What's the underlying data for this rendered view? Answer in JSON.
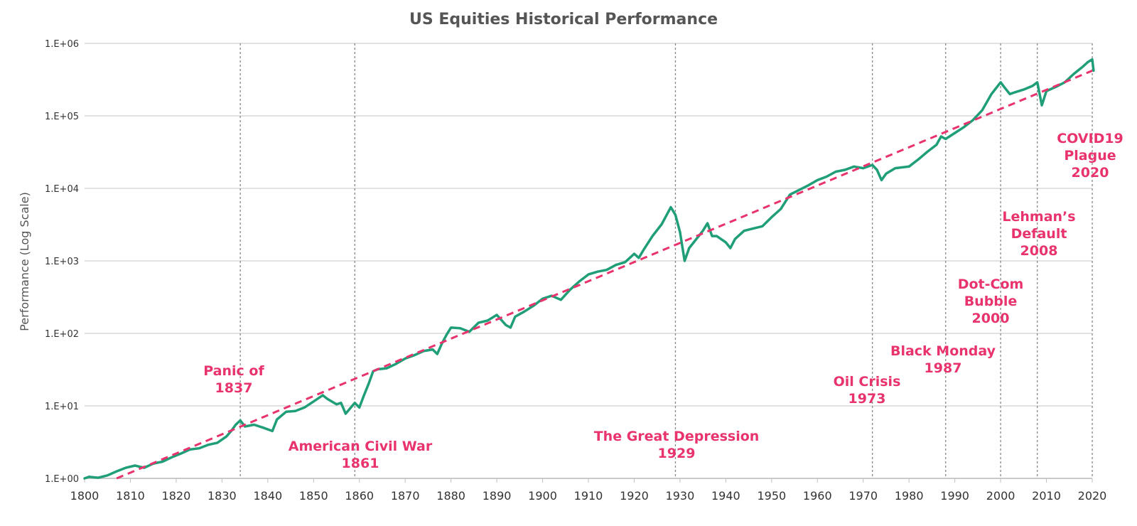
{
  "chart_data": {
    "type": "line",
    "title": "US Equities Historical Performance",
    "xlabel": "",
    "ylabel": "Performance (Log Scale)",
    "xlim": [
      1800,
      2020
    ],
    "ylim": [
      1,
      1000000
    ],
    "yscale": "log",
    "grid": "horizontal",
    "x_ticks": [
      "1800",
      "1810",
      "1820",
      "1830",
      "1840",
      "1850",
      "1860",
      "1870",
      "1880",
      "1890",
      "1900",
      "1910",
      "1920",
      "1930",
      "1940",
      "1950",
      "1960",
      "1970",
      "1980",
      "1990",
      "2000",
      "2010",
      "2020"
    ],
    "y_ticks": [
      {
        "value": 1,
        "label": "1.E+00"
      },
      {
        "value": 10,
        "label": "1.E+01"
      },
      {
        "value": 100,
        "label": "1.E+02"
      },
      {
        "value": 1000,
        "label": "1.E+03"
      },
      {
        "value": 10000,
        "label": "1.E+04"
      },
      {
        "value": 100000,
        "label": "1.E+05"
      },
      {
        "value": 1000000,
        "label": "1.E+06"
      }
    ],
    "colors": {
      "performance": "#1f9e78",
      "trend": "#e8336d",
      "event_lines": "#888888",
      "grid": "#d9d9d9"
    },
    "series": [
      {
        "style": "solid",
        "x": [
          1800,
          1801,
          1803,
          1805,
          1807,
          1809,
          1811,
          1813,
          1815,
          1817,
          1819,
          1821,
          1823,
          1825,
          1827,
          1829,
          1831,
          1832,
          1833,
          1834,
          1835,
          1837,
          1839,
          1841,
          1842,
          1844,
          1846,
          1848,
          1850,
          1852,
          1853,
          1855,
          1856,
          1857,
          1859,
          1860,
          1861,
          1862,
          1863,
          1864,
          1866,
          1868,
          1870,
          1872,
          1874,
          1876,
          1877,
          1878,
          1879,
          1880,
          1882,
          1884,
          1886,
          1888,
          1890,
          1892,
          1893,
          1894,
          1896,
          1898,
          1900,
          1902,
          1904,
          1906,
          1908,
          1910,
          1912,
          1914,
          1916,
          1918,
          1920,
          1921,
          1922,
          1924,
          1926,
          1927,
          1928,
          1929,
          1930,
          1931,
          1932,
          1933,
          1935,
          1936,
          1937,
          1938,
          1940,
          1941,
          1942,
          1944,
          1946,
          1948,
          1950,
          1952,
          1954,
          1956,
          1958,
          1960,
          1962,
          1964,
          1966,
          1968,
          1970,
          1972,
          1973,
          1974,
          1975,
          1977,
          1980,
          1982,
          1984,
          1986,
          1987,
          1988,
          1990,
          1992,
          1994,
          1996,
          1998,
          2000,
          2001,
          2002,
          2003,
          2005,
          2007,
          2008,
          2009,
          2010,
          2012,
          2014,
          2016,
          2018,
          2019,
          2020,
          2020.3
        ],
        "y": [
          1.0,
          1.05,
          1.02,
          1.1,
          1.25,
          1.4,
          1.5,
          1.4,
          1.6,
          1.7,
          1.95,
          2.2,
          2.5,
          2.6,
          2.9,
          3.1,
          3.8,
          4.5,
          5.5,
          6.3,
          5.2,
          5.5,
          5.0,
          4.5,
          6.5,
          8.3,
          8.5,
          9.5,
          11.5,
          14,
          12.5,
          10.5,
          11,
          7.8,
          11,
          9.5,
          14,
          20,
          30,
          32,
          33,
          38,
          45,
          50,
          57,
          60,
          52,
          72,
          95,
          120,
          118,
          105,
          140,
          150,
          180,
          130,
          120,
          170,
          200,
          240,
          300,
          330,
          290,
          400,
          520,
          650,
          710,
          750,
          880,
          960,
          1250,
          1100,
          1400,
          2200,
          3200,
          4200,
          5500,
          4300,
          2500,
          1000,
          1500,
          1800,
          2600,
          3300,
          2200,
          2200,
          1800,
          1500,
          2000,
          2600,
          2800,
          3000,
          4000,
          5200,
          8200,
          9500,
          11000,
          13000,
          14500,
          17000,
          18000,
          20000,
          19000,
          21000,
          18000,
          13000,
          16000,
          19000,
          20000,
          25000,
          32000,
          40000,
          52000,
          48000,
          58000,
          70000,
          88000,
          120000,
          200000,
          290000,
          240000,
          200000,
          210000,
          230000,
          260000,
          290000,
          140000,
          220000,
          250000,
          290000,
          380000,
          480000,
          550000,
          600000,
          420000
        ]
      },
      {
        "style": "dashed",
        "x": [
          1807,
          2020
        ],
        "y": [
          1.0,
          420000
        ]
      }
    ],
    "events": [
      {
        "x": 1834,
        "lines": [
          "Panic of",
          "1837"
        ]
      },
      {
        "x": 1859,
        "lines": [
          "American Civil War",
          "1861"
        ]
      },
      {
        "x": 1929,
        "lines": [
          "The Great Depression",
          "1929"
        ]
      },
      {
        "x": 1972,
        "lines": [
          "Oil Crisis",
          "1973"
        ]
      },
      {
        "x": 1988,
        "lines": [
          "Black Monday",
          "1987"
        ]
      },
      {
        "x": 2000,
        "lines": [
          "Dot-Com",
          "Bubble",
          "2000"
        ]
      },
      {
        "x": 2008,
        "lines": [
          "Lehman’s",
          "Default",
          "2008"
        ]
      },
      {
        "x": 2020,
        "lines": [
          "COVID19",
          "Plague",
          "2020"
        ]
      }
    ]
  }
}
